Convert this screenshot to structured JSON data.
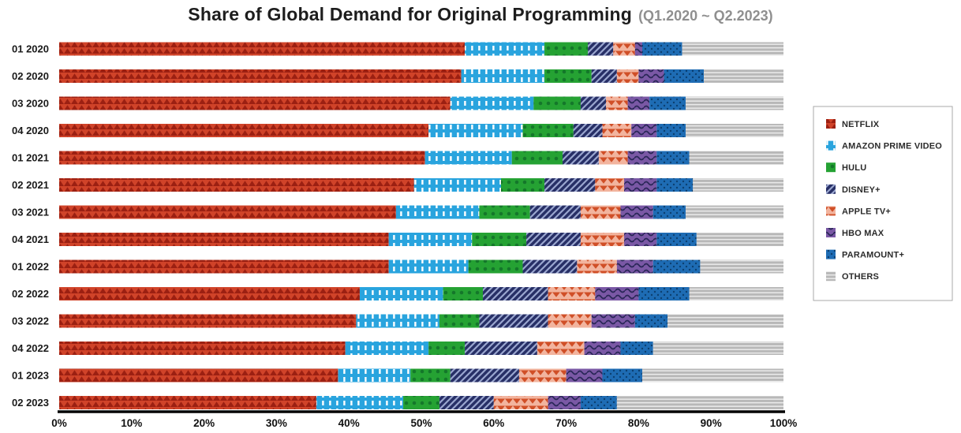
{
  "chart_data": {
    "type": "bar",
    "stacked": true,
    "orientation": "horizontal",
    "title": "Share of Global Demand for Original Programming",
    "subtitle": "(Q1.2020 ~ Q2.2023)",
    "unit": "%",
    "xlim": [
      0,
      100
    ],
    "x_ticks": [
      "0%",
      "10%",
      "20%",
      "30%",
      "40%",
      "50%",
      "60%",
      "70%",
      "80%",
      "90%",
      "100%"
    ],
    "grid": false,
    "legend_position": "right",
    "categories": [
      "01 2020",
      "02 2020",
      "03 2020",
      "04 2020",
      "01 2021",
      "02 2021",
      "03 2021",
      "04 2021",
      "01 2022",
      "02 2022",
      "03 2022",
      "04 2022",
      "01 2023",
      "02 2023"
    ],
    "series": [
      {
        "name": "NETFLIX",
        "color": "#d04329",
        "pattern_color": "#9c2012",
        "pattern": "zigzag",
        "values": [
          56,
          55.5,
          54,
          51,
          50.5,
          49,
          46.5,
          45.5,
          45.5,
          41.5,
          41,
          39.5,
          38.5,
          35.5
        ]
      },
      {
        "name": "AMAZON PRIME VIDEO",
        "color": "#29a4de",
        "pattern_color": "#ffffff",
        "pattern": "vertical-dash",
        "values": [
          11,
          11.5,
          11.5,
          13,
          12,
          12,
          11.5,
          11.5,
          11,
          11.5,
          11.5,
          11.5,
          10,
          12
        ]
      },
      {
        "name": "HULU",
        "color": "#25a233",
        "pattern_color": "#14772a",
        "pattern": "dots",
        "values": [
          6,
          6.5,
          6.5,
          7,
          7,
          6,
          7,
          7.5,
          7.5,
          5.5,
          5.5,
          5,
          5.5,
          5
        ]
      },
      {
        "name": "DISNEY+",
        "color": "#272f66",
        "pattern_color": "#9aa6cf",
        "pattern": "diagonal-stripes",
        "values": [
          3.5,
          3.5,
          3.5,
          4,
          5,
          7,
          7,
          7.5,
          7.5,
          9,
          9.5,
          10,
          9.5,
          7.5
        ]
      },
      {
        "name": "APPLE TV+",
        "color": "#f2b49e",
        "pattern_color": "#d04f27",
        "pattern": "triangles",
        "values": [
          3,
          3,
          3,
          4,
          4,
          4,
          5.5,
          6,
          5.5,
          6.5,
          6,
          6.5,
          6.5,
          7.5
        ]
      },
      {
        "name": "HBO MAX",
        "color": "#7a58a5",
        "pattern_color": "#2a2758",
        "pattern": "waves",
        "values": [
          1,
          3.5,
          3,
          3.5,
          4,
          4.5,
          4.5,
          4.5,
          5,
          6,
          6,
          5,
          5,
          4.5
        ]
      },
      {
        "name": "PARAMOUNT+",
        "color": "#1e6cb4",
        "pattern_color": "#0c3f70",
        "pattern": "small-dots",
        "values": [
          5.5,
          5.5,
          5,
          4,
          4.5,
          5,
          4.5,
          5.5,
          6.5,
          7,
          4.5,
          4.5,
          5.5,
          5
        ]
      },
      {
        "name": "OTHERS",
        "color": "#b8b8b8",
        "pattern_color": "#ebebeb",
        "pattern": "horizontal-lines",
        "values": [
          14,
          11,
          13.5,
          13.5,
          13,
          12.5,
          13.5,
          12,
          11.5,
          13,
          16,
          18,
          19.5,
          23
        ]
      }
    ]
  }
}
